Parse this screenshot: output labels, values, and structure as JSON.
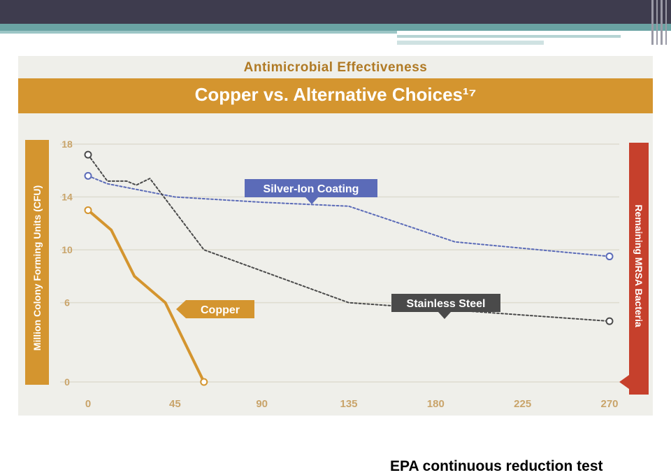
{
  "caption": "EPA  continuous reduction test",
  "colors": {
    "accent": "#d4952f",
    "copper": "#d4952f",
    "silver": "#5b6bb8",
    "steel": "#4a4a4a",
    "bacteria_band": "#c6402c",
    "slide_dark": "#3e3c4e",
    "slide_teal": "#6aa3a3"
  },
  "chart_data": {
    "type": "line",
    "title": "Copper vs. Alternative Choices¹⁷",
    "subtitle": "Antimicrobial Effectiveness",
    "ylabel": "Million Colony Forming Units (CFU)",
    "y2label": "Remaining MRSA Bacteria",
    "xlabel": "",
    "xlim": [
      0,
      270
    ],
    "ylim": [
      0,
      18
    ],
    "x_ticks": [
      "0",
      "45",
      "90",
      "135",
      "180",
      "225",
      "270"
    ],
    "y_ticks": [
      "0",
      "6",
      "10",
      "14",
      "18"
    ],
    "grid": true,
    "series": [
      {
        "name": "Silver-Ion Coating",
        "color": "#5b6bb8",
        "style": "dotted",
        "points": [
          [
            0,
            15.6
          ],
          [
            10,
            15.0
          ],
          [
            45,
            14.0
          ],
          [
            90,
            13.6
          ],
          [
            135,
            13.3
          ],
          [
            190,
            10.6
          ],
          [
            270,
            9.5
          ]
        ]
      },
      {
        "name": "Stainless Steel",
        "color": "#4a4a4a",
        "style": "dotted",
        "points": [
          [
            0,
            17.2
          ],
          [
            10,
            15.2
          ],
          [
            20,
            15.2
          ],
          [
            25,
            14.9
          ],
          [
            32,
            15.4
          ],
          [
            60,
            10.0
          ],
          [
            135,
            6.0
          ],
          [
            270,
            4.6
          ]
        ]
      },
      {
        "name": "Copper",
        "color": "#d4952f",
        "style": "solid",
        "points": [
          [
            0,
            13.0
          ],
          [
            12,
            11.5
          ],
          [
            24,
            8.0
          ],
          [
            40,
            6.0
          ],
          [
            60,
            0.0
          ]
        ]
      }
    ]
  }
}
